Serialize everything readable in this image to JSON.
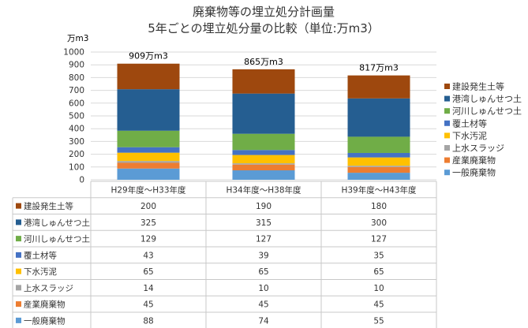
{
  "chart_data": {
    "type": "bar",
    "stacked": true,
    "title": "廃棄物等の埋立処分計画量",
    "subtitle": "5年ごとの埋立処分量の比較（単位:万m3）",
    "ylabel": "万m3",
    "ylim": [
      0,
      1000
    ],
    "yticks": [
      0,
      100,
      200,
      300,
      400,
      500,
      600,
      700,
      800,
      900,
      1000
    ],
    "grid": true,
    "legend_position": "right",
    "categories": [
      "H29年度～H33年度",
      "H34年度～H38年度",
      "H39年度～H43年度"
    ],
    "totals": [
      "909万m3",
      "865万m3",
      "817万m3"
    ],
    "total_values": [
      909,
      865,
      817
    ],
    "series": [
      {
        "name": "一般廃棄物",
        "color": "#5B9BD5",
        "values": [
          88,
          74,
          55
        ]
      },
      {
        "name": "産業廃棄物",
        "color": "#ED7D31",
        "values": [
          45,
          45,
          45
        ]
      },
      {
        "name": "上水スラッジ",
        "color": "#A5A5A5",
        "values": [
          14,
          10,
          10
        ]
      },
      {
        "name": "下水汚泥",
        "color": "#FFC000",
        "values": [
          65,
          65,
          65
        ]
      },
      {
        "name": "覆土材等",
        "color": "#4472C4",
        "values": [
          43,
          39,
          35
        ]
      },
      {
        "name": "河川しゅんせつ土",
        "color": "#70AD47",
        "values": [
          129,
          127,
          127
        ]
      },
      {
        "name": "港湾しゅんせつ土",
        "color": "#255E91",
        "values": [
          325,
          315,
          300
        ]
      },
      {
        "name": "建設発生土等",
        "color": "#9E480E",
        "values": [
          200,
          190,
          180
        ]
      }
    ]
  }
}
